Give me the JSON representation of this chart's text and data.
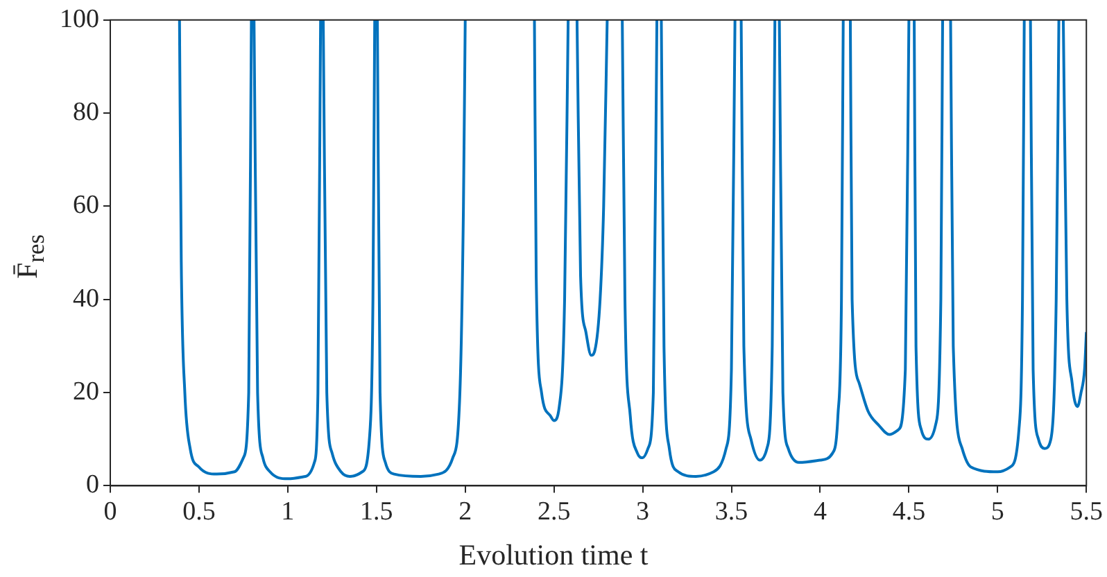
{
  "chart_data": {
    "type": "line",
    "xlabel": "Evolution time t",
    "ylabel": "F̄$_{res}$",
    "xlim": [
      0,
      5.5
    ],
    "ylim": [
      0,
      100
    ],
    "xticks": [
      0,
      0.5,
      1,
      1.5,
      2,
      2.5,
      3,
      3.5,
      4,
      4.5,
      5,
      5.5
    ],
    "yticks": [
      0,
      20,
      40,
      60,
      80,
      100
    ],
    "grid": false,
    "legend": false,
    "marker": "none",
    "line_style": "solid",
    "series": [
      {
        "color": "#0072bd",
        "x": [
          0.39,
          0.4,
          0.42,
          0.45,
          0.5,
          0.6,
          0.7,
          0.75,
          0.78,
          0.795,
          0.8,
          0.81,
          0.83,
          0.86,
          0.9,
          1.0,
          1.1,
          1.15,
          1.17,
          1.185,
          1.19,
          1.2,
          1.22,
          1.25,
          1.3,
          1.35,
          1.42,
          1.46,
          1.48,
          1.49,
          1.5,
          1.505,
          1.52,
          1.55,
          1.6,
          1.75,
          1.85,
          1.93,
          1.97,
          1.99,
          2.0,
          2.2,
          2.39,
          2.4,
          2.43,
          2.48,
          2.5,
          2.53,
          2.56,
          2.58,
          2.6,
          2.63,
          2.65,
          2.68,
          2.71,
          2.73,
          2.76,
          2.78,
          2.8,
          2.84,
          2.885,
          2.9,
          2.93,
          2.97,
          3.0,
          3.03,
          3.06,
          3.08,
          3.09,
          3.105,
          3.12,
          3.15,
          3.2,
          3.3,
          3.4,
          3.47,
          3.5,
          3.52,
          3.54,
          3.555,
          3.57,
          3.61,
          3.66,
          3.7,
          3.73,
          3.745,
          3.76,
          3.77,
          3.79,
          3.82,
          3.88,
          4.0,
          4.07,
          4.1,
          4.12,
          4.13,
          4.15,
          4.17,
          4.18,
          4.22,
          4.27,
          4.33,
          4.39,
          4.44,
          4.48,
          4.5,
          4.51,
          4.53,
          4.54,
          4.57,
          4.61,
          4.65,
          4.68,
          4.69,
          4.71,
          4.735,
          4.75,
          4.8,
          4.85,
          5.0,
          5.07,
          5.12,
          5.14,
          5.15,
          5.17,
          5.185,
          5.2,
          5.23,
          5.265,
          5.3,
          5.33,
          5.345,
          5.36,
          5.37,
          5.39,
          5.42,
          5.45,
          5.47,
          5.49,
          5.5
        ],
        "values": [
          100,
          48,
          20,
          8,
          4,
          2.5,
          3,
          6,
          20,
          100,
          null,
          100,
          20,
          6,
          3,
          1.5,
          2,
          5,
          20,
          100,
          null,
          100,
          20,
          7,
          3,
          2,
          3,
          10,
          40,
          100,
          null,
          100,
          20,
          5,
          2.5,
          2,
          2.5,
          6,
          20,
          60,
          100,
          null,
          100,
          45,
          20,
          15,
          14,
          17,
          40,
          100,
          null,
          100,
          45,
          33,
          28,
          29,
          40,
          60,
          100,
          null,
          100,
          40,
          15,
          7,
          6,
          8,
          20,
          100,
          null,
          100,
          30,
          8,
          3,
          2,
          3,
          8,
          25,
          100,
          null,
          100,
          30,
          10,
          5.5,
          8,
          30,
          100,
          null,
          100,
          20,
          8,
          5,
          5.5,
          7,
          15,
          40,
          100,
          null,
          100,
          40,
          22,
          16,
          13,
          11,
          12,
          25,
          100,
          null,
          100,
          30,
          12,
          10,
          13,
          40,
          100,
          null,
          100,
          30,
          8,
          4,
          3,
          4,
          12,
          40,
          100,
          null,
          100,
          25,
          10,
          8,
          10,
          40,
          100,
          null,
          100,
          40,
          22,
          17,
          20,
          25,
          33
        ]
      }
    ]
  }
}
